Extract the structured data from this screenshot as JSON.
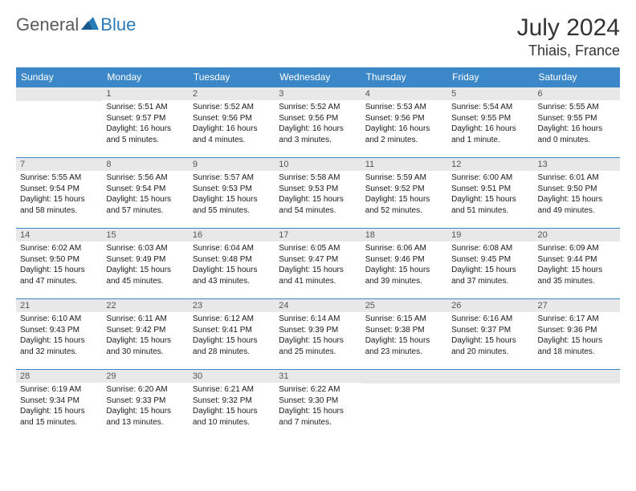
{
  "brand": {
    "part1": "General",
    "part2": "Blue"
  },
  "title": "July 2024",
  "location": "Thiais, France",
  "weekdays": [
    "Sunday",
    "Monday",
    "Tuesday",
    "Wednesday",
    "Thursday",
    "Friday",
    "Saturday"
  ],
  "colors": {
    "header_bg": "#3b87c8",
    "header_text": "#ffffff",
    "daynum_bg": "#e8e8e8",
    "daynum_text": "#555555",
    "border": "#3b87c8",
    "body_text": "#1a1a1a",
    "brand_gray": "#5a5a5a",
    "brand_blue": "#2a7ab8"
  },
  "grid": [
    [
      null,
      {
        "n": "1",
        "sr": "5:51 AM",
        "ss": "9:57 PM",
        "dl": "16 hours and 5 minutes."
      },
      {
        "n": "2",
        "sr": "5:52 AM",
        "ss": "9:56 PM",
        "dl": "16 hours and 4 minutes."
      },
      {
        "n": "3",
        "sr": "5:52 AM",
        "ss": "9:56 PM",
        "dl": "16 hours and 3 minutes."
      },
      {
        "n": "4",
        "sr": "5:53 AM",
        "ss": "9:56 PM",
        "dl": "16 hours and 2 minutes."
      },
      {
        "n": "5",
        "sr": "5:54 AM",
        "ss": "9:55 PM",
        "dl": "16 hours and 1 minute."
      },
      {
        "n": "6",
        "sr": "5:55 AM",
        "ss": "9:55 PM",
        "dl": "16 hours and 0 minutes."
      }
    ],
    [
      {
        "n": "7",
        "sr": "5:55 AM",
        "ss": "9:54 PM",
        "dl": "15 hours and 58 minutes."
      },
      {
        "n": "8",
        "sr": "5:56 AM",
        "ss": "9:54 PM",
        "dl": "15 hours and 57 minutes."
      },
      {
        "n": "9",
        "sr": "5:57 AM",
        "ss": "9:53 PM",
        "dl": "15 hours and 55 minutes."
      },
      {
        "n": "10",
        "sr": "5:58 AM",
        "ss": "9:53 PM",
        "dl": "15 hours and 54 minutes."
      },
      {
        "n": "11",
        "sr": "5:59 AM",
        "ss": "9:52 PM",
        "dl": "15 hours and 52 minutes."
      },
      {
        "n": "12",
        "sr": "6:00 AM",
        "ss": "9:51 PM",
        "dl": "15 hours and 51 minutes."
      },
      {
        "n": "13",
        "sr": "6:01 AM",
        "ss": "9:50 PM",
        "dl": "15 hours and 49 minutes."
      }
    ],
    [
      {
        "n": "14",
        "sr": "6:02 AM",
        "ss": "9:50 PM",
        "dl": "15 hours and 47 minutes."
      },
      {
        "n": "15",
        "sr": "6:03 AM",
        "ss": "9:49 PM",
        "dl": "15 hours and 45 minutes."
      },
      {
        "n": "16",
        "sr": "6:04 AM",
        "ss": "9:48 PM",
        "dl": "15 hours and 43 minutes."
      },
      {
        "n": "17",
        "sr": "6:05 AM",
        "ss": "9:47 PM",
        "dl": "15 hours and 41 minutes."
      },
      {
        "n": "18",
        "sr": "6:06 AM",
        "ss": "9:46 PM",
        "dl": "15 hours and 39 minutes."
      },
      {
        "n": "19",
        "sr": "6:08 AM",
        "ss": "9:45 PM",
        "dl": "15 hours and 37 minutes."
      },
      {
        "n": "20",
        "sr": "6:09 AM",
        "ss": "9:44 PM",
        "dl": "15 hours and 35 minutes."
      }
    ],
    [
      {
        "n": "21",
        "sr": "6:10 AM",
        "ss": "9:43 PM",
        "dl": "15 hours and 32 minutes."
      },
      {
        "n": "22",
        "sr": "6:11 AM",
        "ss": "9:42 PM",
        "dl": "15 hours and 30 minutes."
      },
      {
        "n": "23",
        "sr": "6:12 AM",
        "ss": "9:41 PM",
        "dl": "15 hours and 28 minutes."
      },
      {
        "n": "24",
        "sr": "6:14 AM",
        "ss": "9:39 PM",
        "dl": "15 hours and 25 minutes."
      },
      {
        "n": "25",
        "sr": "6:15 AM",
        "ss": "9:38 PM",
        "dl": "15 hours and 23 minutes."
      },
      {
        "n": "26",
        "sr": "6:16 AM",
        "ss": "9:37 PM",
        "dl": "15 hours and 20 minutes."
      },
      {
        "n": "27",
        "sr": "6:17 AM",
        "ss": "9:36 PM",
        "dl": "15 hours and 18 minutes."
      }
    ],
    [
      {
        "n": "28",
        "sr": "6:19 AM",
        "ss": "9:34 PM",
        "dl": "15 hours and 15 minutes."
      },
      {
        "n": "29",
        "sr": "6:20 AM",
        "ss": "9:33 PM",
        "dl": "15 hours and 13 minutes."
      },
      {
        "n": "30",
        "sr": "6:21 AM",
        "ss": "9:32 PM",
        "dl": "15 hours and 10 minutes."
      },
      {
        "n": "31",
        "sr": "6:22 AM",
        "ss": "9:30 PM",
        "dl": "15 hours and 7 minutes."
      },
      null,
      null,
      null
    ]
  ],
  "labels": {
    "sunrise": "Sunrise:",
    "sunset": "Sunset:",
    "daylight": "Daylight:"
  }
}
